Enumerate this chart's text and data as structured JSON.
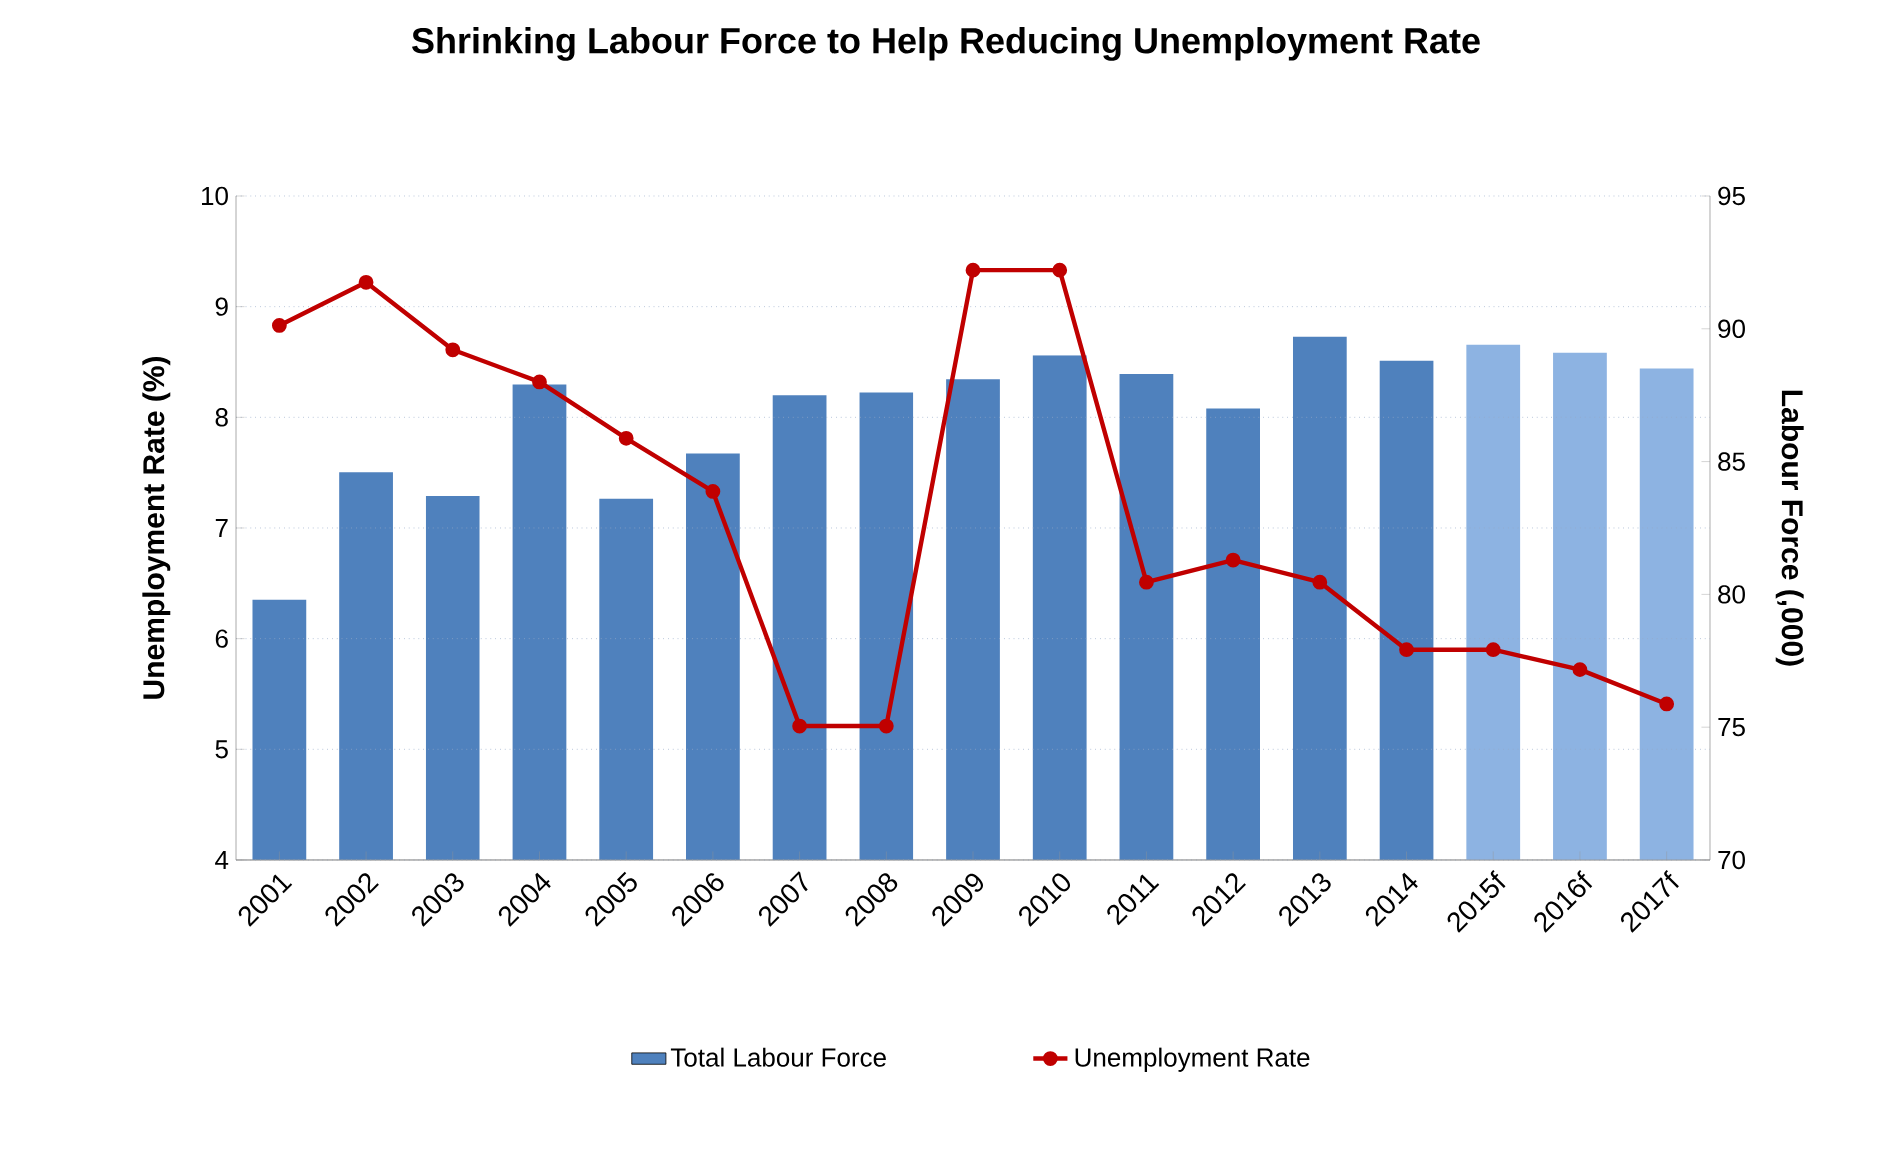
{
  "chart_data": {
    "type": "bar",
    "title": "Shrinking Labour Force to Help Reducing Unemployment Rate",
    "ylabel": "Unemployment Rate (%)",
    "y2label": "Labour Force (,000)",
    "categories": [
      "2001",
      "2002",
      "2003",
      "2004",
      "2005",
      "2006",
      "2007",
      "2008",
      "2009",
      "2010",
      "2011",
      "2012",
      "2013",
      "2014",
      "2015f",
      "2016f",
      "2017f"
    ],
    "series": [
      {
        "name": "Total Labour Force",
        "axis": "y2",
        "color": "#4f81bd",
        "colors": [
          "#4f81bd",
          "#4f81bd",
          "#4f81bd",
          "#4f81bd",
          "#4f81bd",
          "#4f81bd",
          "#4f81bd",
          "#4f81bd",
          "#4f81bd",
          "#4f81bd",
          "#4f81bd",
          "#4f81bd",
          "#4f81bd",
          "#4f81bd",
          "#8db3e2",
          "#8db3e2",
          "#8db3e2"
        ],
        "values": [
          79.8,
          84.6,
          83.7,
          87.9,
          83.6,
          85.3,
          87.5,
          87.6,
          88.1,
          89.0,
          88.3,
          87.0,
          89.7,
          88.8,
          89.4,
          89.1,
          88.5
        ]
      },
      {
        "name": "Unemployment Rate",
        "type": "line",
        "color": "#c00000",
        "marker": "circle",
        "values": [
          8.83,
          9.22,
          8.61,
          8.32,
          7.81,
          7.33,
          5.21,
          5.21,
          9.33,
          9.33,
          6.51,
          6.71,
          6.51,
          5.9,
          5.9,
          5.72,
          5.41
        ]
      }
    ],
    "ylim": [
      4,
      10
    ],
    "yticks": [
      4,
      5,
      6,
      7,
      8,
      9,
      10
    ],
    "y2lim": [
      70,
      95
    ],
    "y2ticks": [
      70,
      75,
      80,
      85,
      90,
      95
    ],
    "grid": "y",
    "legend": "bottom"
  }
}
